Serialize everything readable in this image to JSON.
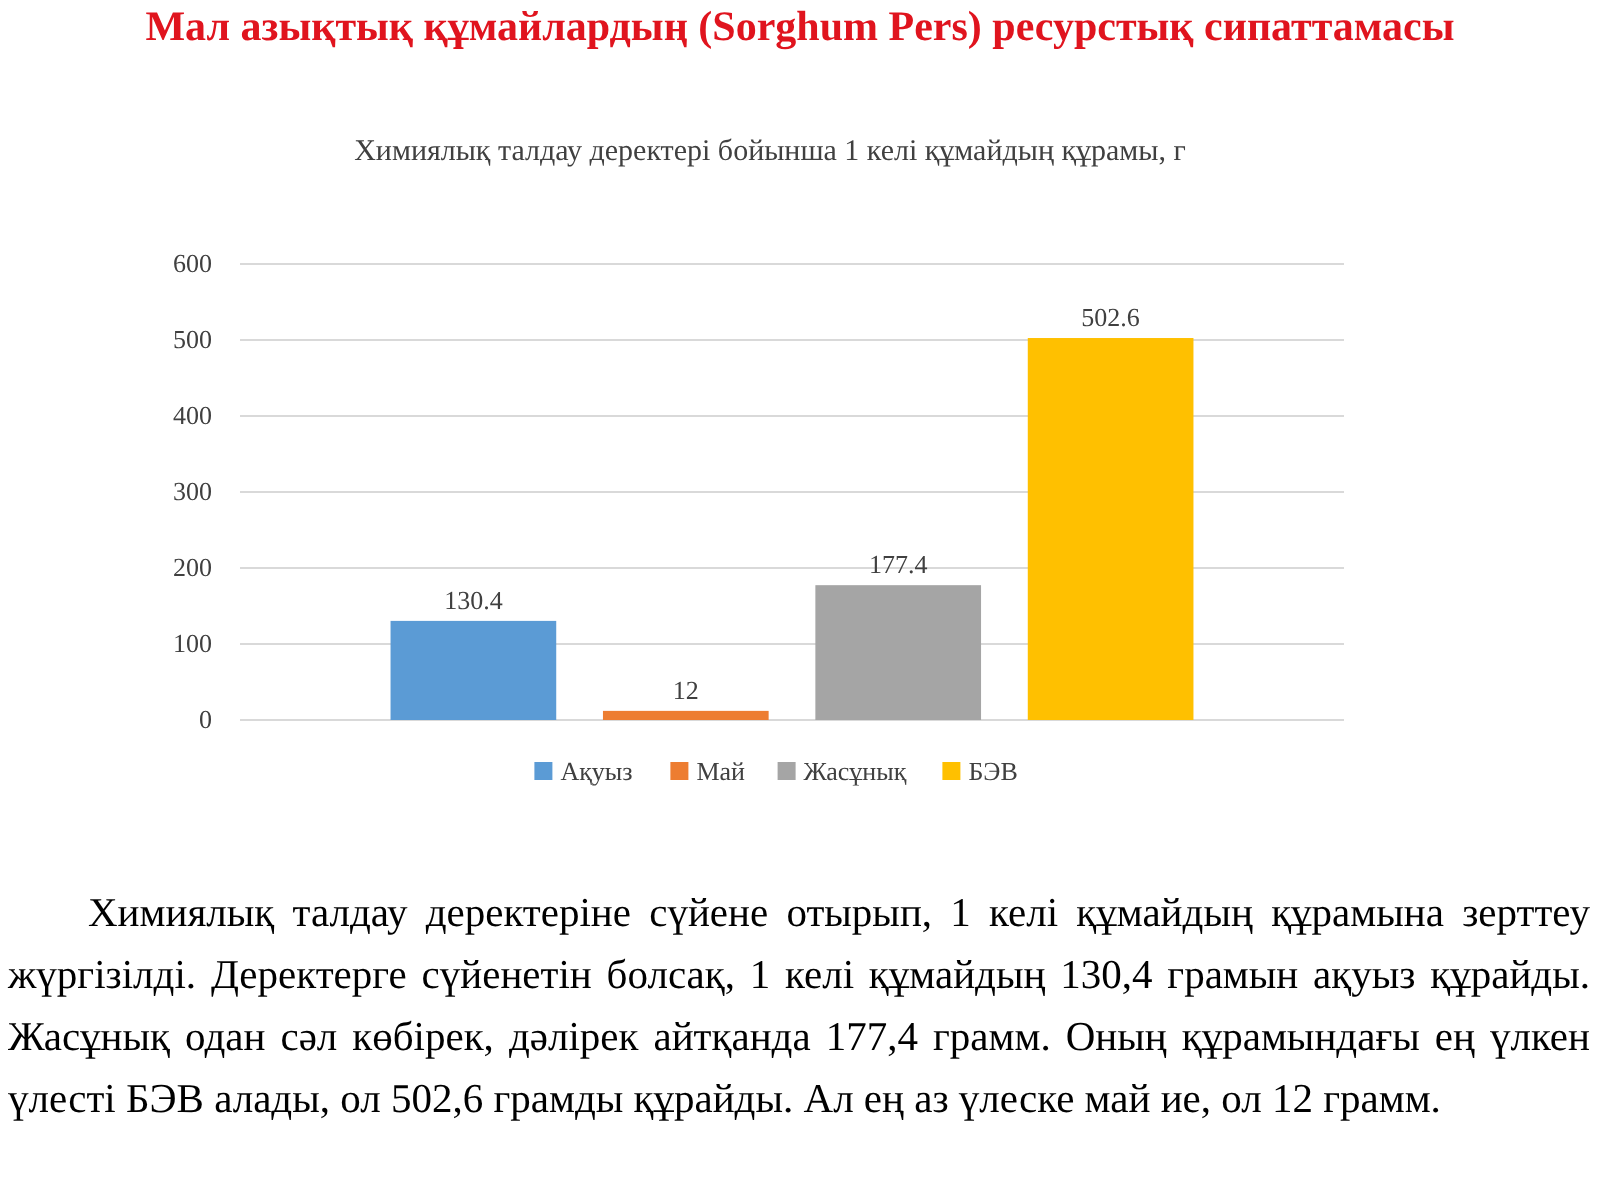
{
  "chart_data": {
    "type": "bar",
    "title": "Мал азықтық құмайлардың (Sorghum Pers)  ресурстық сипаттамасы",
    "subtitle": "Химиялық талдау деректері бойынша 1 келі құмайдың құрамы, г",
    "categories": [
      null
    ],
    "series": [
      {
        "name": "Ақуыз",
        "color": "#5b9bd5",
        "values": [
          130.4
        ]
      },
      {
        "name": "Май",
        "color": "#ed7d31",
        "values": [
          12
        ]
      },
      {
        "name": "Жасұнық",
        "color": "#a5a5a5",
        "values": [
          177.4
        ]
      },
      {
        "name": "БЭВ",
        "color": "#ffc000",
        "values": [
          502.6
        ]
      }
    ],
    "ylim": [
      0,
      600
    ],
    "yticks": [
      0,
      100,
      200,
      300,
      400,
      500,
      600
    ],
    "grid": "y",
    "legend": "bottom",
    "data_labels": true,
    "annotations": [
      "Химиялық талдау деректеріне сүйене отырып, 1 келі құмайдың құрамына зерттеу жүргізілді. Деректерге сүйенетін болсақ, 1 келі құмайдың 130,4 грамын ақуыз құрайды. Жасұнық одан сәл көбірек, дәлірек айтқанда 177,4 грамм. Оның құрамындағы ең үлкен үлесті БЭВ алады, ол 502,6 грамды құрайды. Ал ең аз үлеске май ие, ол 12 грамм."
    ]
  }
}
